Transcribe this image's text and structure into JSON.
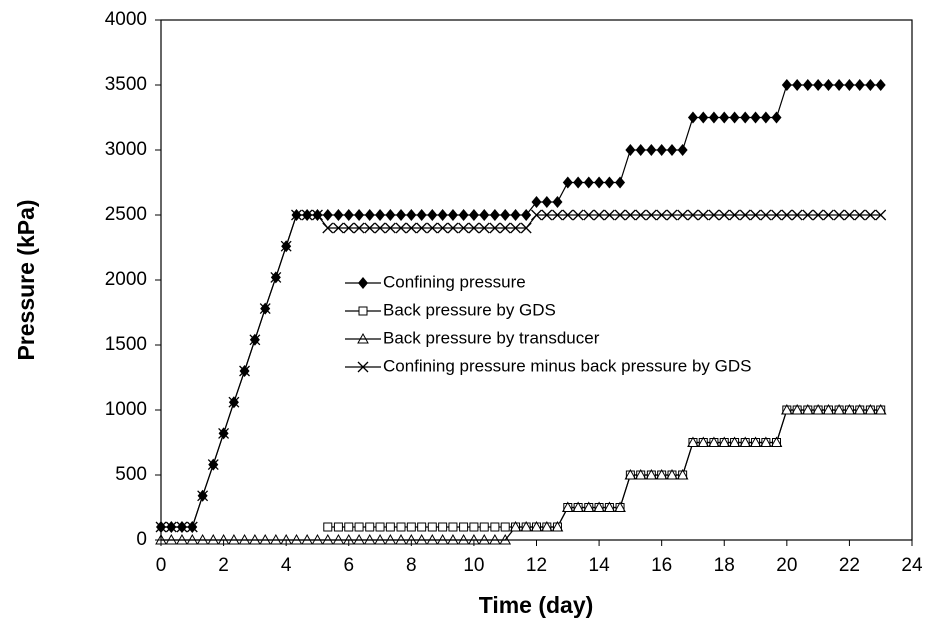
{
  "chart_data": {
    "type": "line",
    "x_label": "Time (day)",
    "y_label": "Pressure (kPa)",
    "xlim": [
      0,
      24
    ],
    "xticks": [
      0,
      2,
      4,
      6,
      8,
      10,
      12,
      14,
      16,
      18,
      20,
      22,
      24
    ],
    "ylim": [
      0,
      4000
    ],
    "yticks": [
      0,
      500,
      1000,
      1500,
      2000,
      2500,
      3000,
      3500,
      4000
    ],
    "grid": false,
    "x": [
      0,
      0.33,
      0.67,
      1,
      1.33,
      1.67,
      2,
      2.33,
      2.67,
      3,
      3.33,
      3.67,
      4,
      4.33,
      4.67,
      5,
      5.33,
      5.67,
      6,
      6.33,
      6.67,
      7,
      7.33,
      7.67,
      8,
      8.33,
      8.67,
      9,
      9.33,
      9.67,
      10,
      10.33,
      10.67,
      11,
      11.33,
      11.67,
      12,
      12.33,
      12.67,
      13,
      13.33,
      13.67,
      14,
      14.33,
      14.67,
      15,
      15.33,
      15.67,
      16,
      16.33,
      16.67,
      17,
      17.33,
      17.67,
      18,
      18.33,
      18.67,
      19,
      19.33,
      19.67,
      20,
      20.33,
      20.67,
      21,
      21.33,
      21.67,
      22,
      22.33,
      22.67,
      23
    ],
    "series": [
      {
        "name": "Confining pressure",
        "color": "#000000",
        "marker": "diamond",
        "values": [
          100,
          100,
          100,
          100,
          340,
          580,
          820,
          1060,
          1300,
          1540,
          1780,
          2020,
          2260,
          2500,
          2500,
          2500,
          2500,
          2500,
          2500,
          2500,
          2500,
          2500,
          2500,
          2500,
          2500,
          2500,
          2500,
          2500,
          2500,
          2500,
          2500,
          2500,
          2500,
          2500,
          2500,
          2500,
          2600,
          2600,
          2600,
          2750,
          2750,
          2750,
          2750,
          2750,
          2750,
          3000,
          3000,
          3000,
          3000,
          3000,
          3000,
          3250,
          3250,
          3250,
          3250,
          3250,
          3250,
          3250,
          3250,
          3250,
          3500,
          3500,
          3500,
          3500,
          3500,
          3500,
          3500,
          3500,
          3500,
          3500
        ]
      },
      {
        "name": "Back pressure by GDS",
        "color": "#000000",
        "marker": "square",
        "values": [
          null,
          null,
          null,
          null,
          null,
          null,
          null,
          null,
          null,
          null,
          null,
          null,
          null,
          null,
          null,
          null,
          100,
          100,
          100,
          100,
          100,
          100,
          100,
          100,
          100,
          100,
          100,
          100,
          100,
          100,
          100,
          100,
          100,
          100,
          100,
          100,
          100,
          100,
          100,
          250,
          250,
          250,
          250,
          250,
          250,
          500,
          500,
          500,
          500,
          500,
          500,
          750,
          750,
          750,
          750,
          750,
          750,
          750,
          750,
          750,
          1000,
          1000,
          1000,
          1000,
          1000,
          1000,
          1000,
          1000,
          1000,
          1000
        ]
      },
      {
        "name": "Back pressure by transducer",
        "color": "#000000",
        "marker": "triangle",
        "values": [
          0,
          0,
          0,
          0,
          0,
          0,
          0,
          0,
          0,
          0,
          0,
          0,
          0,
          0,
          0,
          0,
          0,
          0,
          0,
          0,
          0,
          0,
          0,
          0,
          0,
          0,
          0,
          0,
          0,
          0,
          0,
          0,
          0,
          0,
          100,
          100,
          100,
          100,
          100,
          250,
          250,
          250,
          250,
          250,
          250,
          500,
          500,
          500,
          500,
          500,
          500,
          750,
          750,
          750,
          750,
          750,
          750,
          750,
          750,
          750,
          1000,
          1000,
          1000,
          1000,
          1000,
          1000,
          1000,
          1000,
          1000,
          1000
        ]
      },
      {
        "name": "Confining pressure minus back pressure by GDS",
        "color": "#000000",
        "marker": "cross",
        "values": [
          100,
          100,
          100,
          100,
          340,
          580,
          820,
          1060,
          1300,
          1540,
          1780,
          2020,
          2260,
          2500,
          2500,
          2500,
          2400,
          2400,
          2400,
          2400,
          2400,
          2400,
          2400,
          2400,
          2400,
          2400,
          2400,
          2400,
          2400,
          2400,
          2400,
          2400,
          2400,
          2400,
          2400,
          2400,
          2500,
          2500,
          2500,
          2500,
          2500,
          2500,
          2500,
          2500,
          2500,
          2500,
          2500,
          2500,
          2500,
          2500,
          2500,
          2500,
          2500,
          2500,
          2500,
          2500,
          2500,
          2500,
          2500,
          2500,
          2500,
          2500,
          2500,
          2500,
          2500,
          2500,
          2500,
          2500,
          2500,
          2500
        ]
      }
    ]
  }
}
